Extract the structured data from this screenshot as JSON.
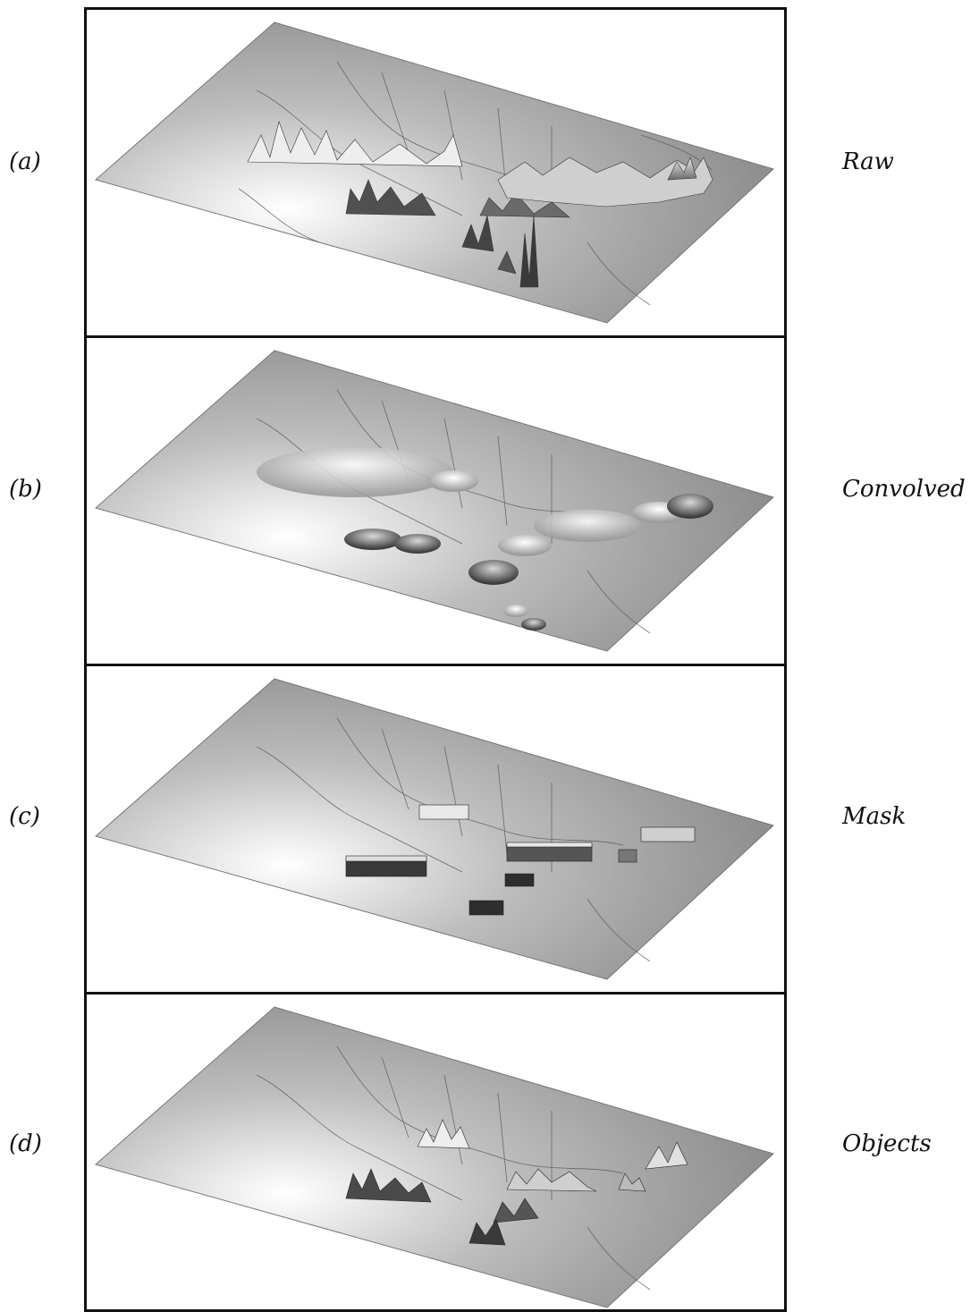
{
  "panels": [
    {
      "label": "(a)",
      "method": "Raw"
    },
    {
      "label": "(b)",
      "method": "Convolved"
    },
    {
      "label": "(c)",
      "method": "Mask"
    },
    {
      "label": "(d)",
      "method": "Objects"
    }
  ]
}
